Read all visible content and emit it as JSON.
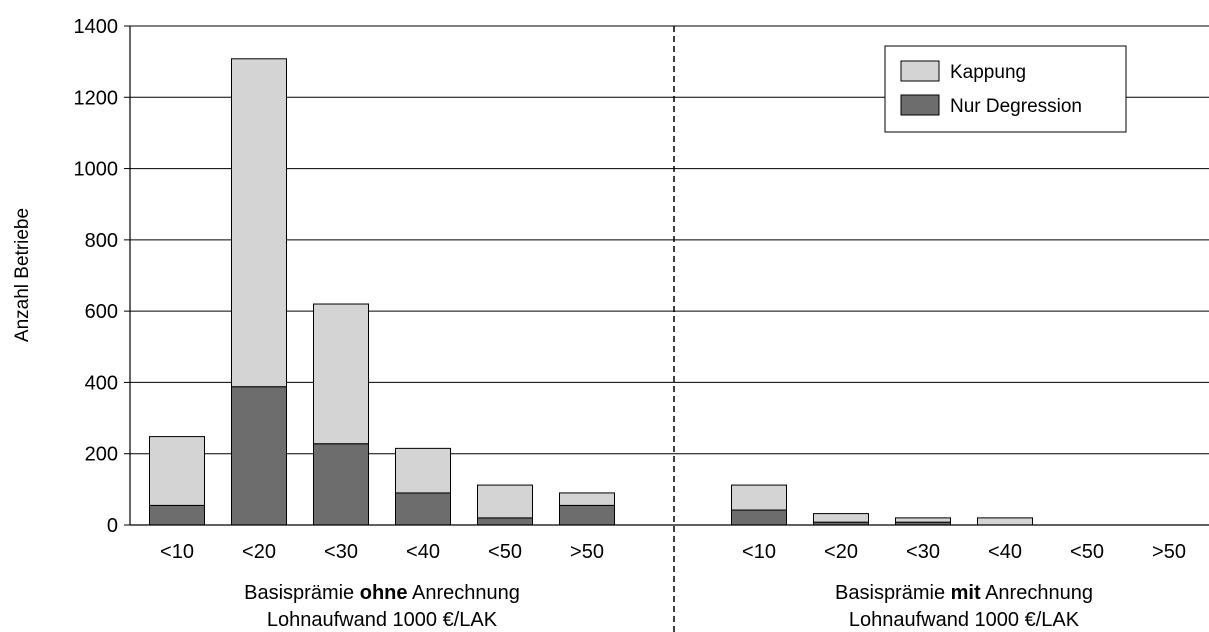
{
  "chart_data": {
    "type": "bar",
    "stacked": true,
    "ylabel": "Anzahl Betriebe",
    "ylim": [
      0,
      1400
    ],
    "yticks": [
      0,
      200,
      400,
      600,
      800,
      1000,
      1200,
      1400
    ],
    "grid": true,
    "legend_position": "top-right",
    "legend": [
      "Kappung",
      "Nur Degression"
    ],
    "colors": {
      "Kappung": "#d4d4d4",
      "Nur Degression": "#6d6d6d"
    },
    "groups": [
      {
        "label_parts": [
          "Basisprämie ",
          "ohne",
          " Anrechnung"
        ],
        "line2": "Lohnaufwand 1000 €/LAK",
        "categories": [
          "<10",
          "<20",
          "<30",
          "<40",
          "<50",
          ">50"
        ],
        "series": [
          {
            "name": "Nur Degression",
            "values": [
              55,
              388,
              228,
              90,
              20,
              55
            ]
          },
          {
            "name": "Kappung",
            "values": [
              193,
              920,
              392,
              125,
              92,
              35
            ]
          }
        ]
      },
      {
        "label_parts": [
          "Basisprämie ",
          "mit",
          " Anrechnung"
        ],
        "line2": "Lohnaufwand 1000 €/LAK",
        "categories": [
          "<10",
          "<20",
          "<30",
          "<40",
          "<50",
          ">50"
        ],
        "series": [
          {
            "name": "Nur Degression",
            "values": [
              42,
              8,
              8,
              0,
              0,
              0
            ]
          },
          {
            "name": "Kappung",
            "values": [
              70,
              24,
              12,
              20,
              0,
              0
            ]
          }
        ]
      }
    ]
  }
}
